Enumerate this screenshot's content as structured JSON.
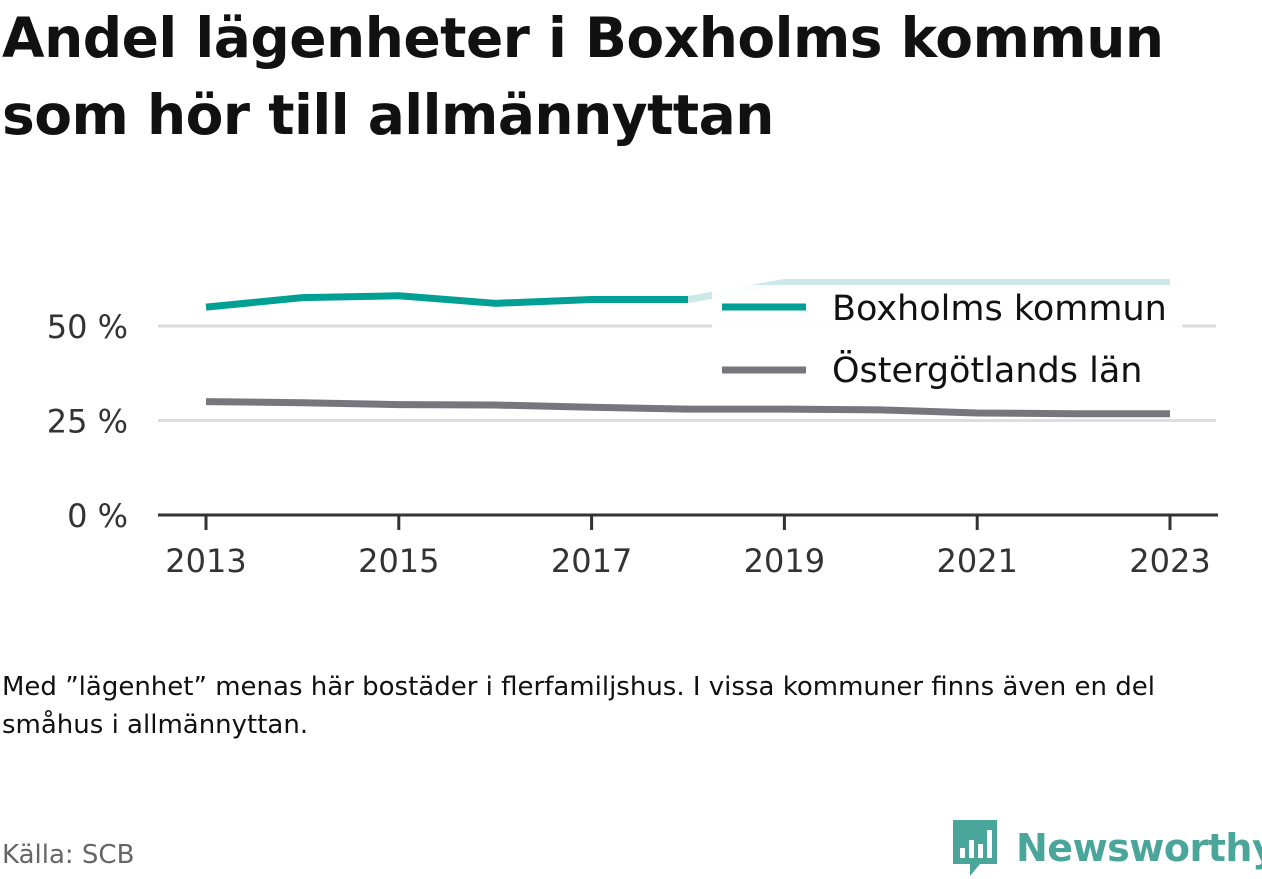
{
  "title": "Andel lägenheter i Boxholms kommun som hör till allmännyttan",
  "note": "Med ”lägenhet” menas här bostäder i flerfamiljshus. I vissa kommuner finns även en del småhus i allmännyttan.",
  "source": "Källa: SCB",
  "brand": {
    "name": "Newsworthy",
    "color": "#4aa59b",
    "icon": "bar-chart-speech-bubble-icon"
  },
  "colors": {
    "series1": "#00a095",
    "series1_light": "#cbe9e7",
    "series2": "#77767c",
    "grid": "#dddddd",
    "axis": "#333333"
  },
  "chart_data": {
    "type": "line",
    "title": "Andel lägenheter i Boxholms kommun som hör till allmännyttan",
    "x": [
      2013,
      2014,
      2015,
      2016,
      2017,
      2018,
      2019,
      2020,
      2021,
      2022,
      2023
    ],
    "x_ticks": [
      "2013",
      "2015",
      "2017",
      "2019",
      "2021",
      "2023"
    ],
    "y_ticks": [
      "0 %",
      "25 %",
      "50 %"
    ],
    "ylim": [
      0,
      65
    ],
    "grid": true,
    "legend_position": "top-right",
    "series": [
      {
        "name": "Boxholms kommun",
        "values": [
          55,
          57.5,
          58,
          56,
          57,
          57,
          61.5,
          61.5,
          61.5,
          61.5,
          61.5
        ]
      },
      {
        "name": "Östergötlands län",
        "values": [
          30,
          29.7,
          29.2,
          29.1,
          28.5,
          28,
          28,
          27.8,
          27,
          26.8,
          26.8
        ]
      }
    ]
  }
}
